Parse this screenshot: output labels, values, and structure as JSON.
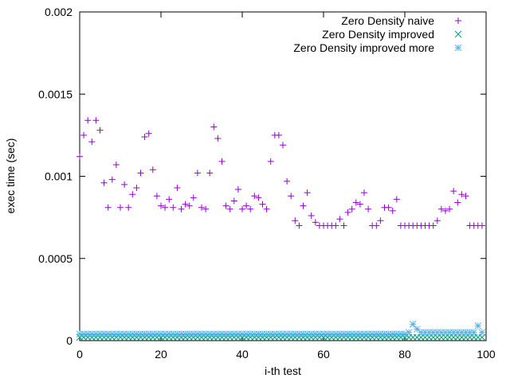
{
  "chart_data": {
    "type": "scatter",
    "xlabel": "i-th test",
    "ylabel": "exec time (sec)",
    "xlim": [
      0,
      100
    ],
    "ylim": [
      0,
      0.002
    ],
    "xticks": [
      0,
      20,
      40,
      60,
      80,
      100
    ],
    "xtick_labels": [
      "0",
      "20",
      "40",
      "60",
      "80",
      "100"
    ],
    "yticks": [
      0,
      0.0005,
      0.001,
      0.0015,
      0.002
    ],
    "ytick_labels": [
      "0",
      "0.0005",
      "0.001",
      "0.0015",
      "0.002"
    ],
    "grid": false,
    "legend_position": "top-right",
    "series": [
      {
        "name": "Zero Density naive",
        "marker": "plus",
        "color": "#9400d3",
        "x": [
          0,
          1,
          2,
          3,
          4,
          5,
          6,
          7,
          8,
          9,
          10,
          11,
          12,
          13,
          14,
          15,
          16,
          17,
          18,
          19,
          20,
          21,
          22,
          23,
          24,
          25,
          26,
          27,
          28,
          29,
          30,
          31,
          32,
          33,
          34,
          35,
          36,
          37,
          38,
          39,
          40,
          41,
          42,
          43,
          44,
          45,
          46,
          47,
          48,
          49,
          50,
          51,
          52,
          53,
          54,
          55,
          56,
          57,
          58,
          59,
          60,
          61,
          62,
          63,
          64,
          65,
          66,
          67,
          68,
          69,
          70,
          71,
          72,
          73,
          74,
          75,
          76,
          77,
          78,
          79,
          80,
          81,
          82,
          83,
          84,
          85,
          86,
          87,
          88,
          89,
          90,
          91,
          92,
          93,
          94,
          95,
          96,
          97,
          98,
          99
        ],
        "y": [
          0.00112,
          0.00125,
          0.00134,
          0.00121,
          0.00134,
          0.00128,
          0.00096,
          0.00081,
          0.00098,
          0.00107,
          0.00081,
          0.00095,
          0.00081,
          0.00089,
          0.00093,
          0.00102,
          0.00124,
          0.00126,
          0.00104,
          0.00088,
          0.00082,
          0.00081,
          0.00086,
          0.00081,
          0.00093,
          0.0008,
          0.00083,
          0.00082,
          0.00087,
          0.00102,
          0.00081,
          0.0008,
          0.00102,
          0.0013,
          0.00123,
          0.00109,
          0.00082,
          0.0008,
          0.00085,
          0.00092,
          0.0008,
          0.00082,
          0.0008,
          0.00088,
          0.00087,
          0.00083,
          0.0008,
          0.00109,
          0.00125,
          0.00125,
          0.00119,
          0.00097,
          0.00088,
          0.00073,
          0.0007,
          0.00082,
          0.0009,
          0.00076,
          0.00072,
          0.0007,
          0.0007,
          0.0007,
          0.0007,
          0.0007,
          0.00074,
          0.0007,
          0.00078,
          0.0008,
          0.00084,
          0.00083,
          0.0009,
          0.0008,
          0.0007,
          0.0007,
          0.00073,
          0.00081,
          0.00081,
          0.00079,
          0.00086,
          0.0007,
          0.0007,
          0.0007,
          0.0007,
          0.0007,
          0.0007,
          0.0007,
          0.0007,
          0.0007,
          0.00073,
          0.0008,
          0.00079,
          0.0008,
          0.00091,
          0.00084,
          0.00089,
          0.00088,
          0.0007,
          0.0007,
          0.0007,
          0.0007
        ]
      },
      {
        "name": "Zero Density improved",
        "marker": "cross",
        "color": "#009e73",
        "x": [
          0,
          1,
          2,
          3,
          4,
          5,
          6,
          7,
          8,
          9,
          10,
          11,
          12,
          13,
          14,
          15,
          16,
          17,
          18,
          19,
          20,
          21,
          22,
          23,
          24,
          25,
          26,
          27,
          28,
          29,
          30,
          31,
          32,
          33,
          34,
          35,
          36,
          37,
          38,
          39,
          40,
          41,
          42,
          43,
          44,
          45,
          46,
          47,
          48,
          49,
          50,
          51,
          52,
          53,
          54,
          55,
          56,
          57,
          58,
          59,
          60,
          61,
          62,
          63,
          64,
          65,
          66,
          67,
          68,
          69,
          70,
          71,
          72,
          73,
          74,
          75,
          76,
          77,
          78,
          79,
          80,
          81,
          82,
          83,
          84,
          85,
          86,
          87,
          88,
          89,
          90,
          91,
          92,
          93,
          94,
          95,
          96,
          97,
          98,
          99
        ],
        "y": [
          2e-05,
          2e-05,
          2e-05,
          2e-05,
          2e-05,
          2e-05,
          2e-05,
          2e-05,
          2e-05,
          2e-05,
          2e-05,
          2e-05,
          2e-05,
          2e-05,
          2e-05,
          2e-05,
          2e-05,
          2e-05,
          2e-05,
          2e-05,
          2e-05,
          2e-05,
          2e-05,
          2e-05,
          2e-05,
          2e-05,
          2e-05,
          2e-05,
          2e-05,
          2e-05,
          2e-05,
          2e-05,
          2e-05,
          2e-05,
          2e-05,
          2e-05,
          2e-05,
          2e-05,
          2e-05,
          2e-05,
          2e-05,
          2e-05,
          2e-05,
          2e-05,
          2e-05,
          2e-05,
          2e-05,
          2e-05,
          2e-05,
          2e-05,
          2e-05,
          2e-05,
          2e-05,
          2e-05,
          2e-05,
          2e-05,
          2e-05,
          2e-05,
          2e-05,
          2e-05,
          2e-05,
          2e-05,
          2e-05,
          2e-05,
          2e-05,
          2e-05,
          2e-05,
          2e-05,
          2e-05,
          2e-05,
          2e-05,
          2e-05,
          2e-05,
          2e-05,
          2e-05,
          2e-05,
          2e-05,
          2e-05,
          2e-05,
          2e-05,
          2e-05,
          2e-05,
          2e-05,
          2e-05,
          2e-05,
          2e-05,
          2e-05,
          2e-05,
          2e-05,
          2e-05,
          2e-05,
          2e-05,
          2e-05,
          2e-05,
          2e-05,
          2e-05,
          2e-05,
          2e-05,
          2e-05,
          2e-05
        ]
      },
      {
        "name": "Zero Density improved more",
        "marker": "star",
        "color": "#56b4e9",
        "x": [
          0,
          1,
          2,
          3,
          4,
          5,
          6,
          7,
          8,
          9,
          10,
          11,
          12,
          13,
          14,
          15,
          16,
          17,
          18,
          19,
          20,
          21,
          22,
          23,
          24,
          25,
          26,
          27,
          28,
          29,
          30,
          31,
          32,
          33,
          34,
          35,
          36,
          37,
          38,
          39,
          40,
          41,
          42,
          43,
          44,
          45,
          46,
          47,
          48,
          49,
          50,
          51,
          52,
          53,
          54,
          55,
          56,
          57,
          58,
          59,
          60,
          61,
          62,
          63,
          64,
          65,
          66,
          67,
          68,
          69,
          70,
          71,
          72,
          73,
          74,
          75,
          76,
          77,
          78,
          79,
          80,
          81,
          82,
          83,
          84,
          85,
          86,
          87,
          88,
          89,
          90,
          91,
          92,
          93,
          94,
          95,
          96,
          97,
          98,
          99
        ],
        "y": [
          4e-05,
          4e-05,
          4e-05,
          4e-05,
          4e-05,
          4e-05,
          4e-05,
          4e-05,
          4e-05,
          4e-05,
          4e-05,
          4e-05,
          4e-05,
          4e-05,
          4e-05,
          4e-05,
          4e-05,
          4e-05,
          4e-05,
          4e-05,
          4e-05,
          4e-05,
          4e-05,
          4e-05,
          4e-05,
          4e-05,
          4e-05,
          4e-05,
          4e-05,
          4e-05,
          4e-05,
          4e-05,
          4e-05,
          4e-05,
          4e-05,
          4e-05,
          4e-05,
          4e-05,
          4e-05,
          4e-05,
          4e-05,
          4e-05,
          4e-05,
          4e-05,
          4e-05,
          4e-05,
          4e-05,
          4e-05,
          4e-05,
          4e-05,
          4e-05,
          4e-05,
          4e-05,
          4e-05,
          4e-05,
          4e-05,
          4e-05,
          4e-05,
          4e-05,
          4e-05,
          4e-05,
          4e-05,
          4e-05,
          4e-05,
          4e-05,
          4e-05,
          4e-05,
          4e-05,
          4e-05,
          4e-05,
          4e-05,
          4e-05,
          4e-05,
          4e-05,
          4e-05,
          4e-05,
          4e-05,
          4e-05,
          4e-05,
          4e-05,
          4e-05,
          5e-05,
          0.0001,
          7e-05,
          5e-05,
          5e-05,
          5e-05,
          5e-05,
          5e-05,
          5e-05,
          5e-05,
          5e-05,
          5e-05,
          5e-05,
          5e-05,
          5e-05,
          5e-05,
          5e-05,
          9e-05,
          5e-05
        ]
      }
    ]
  }
}
